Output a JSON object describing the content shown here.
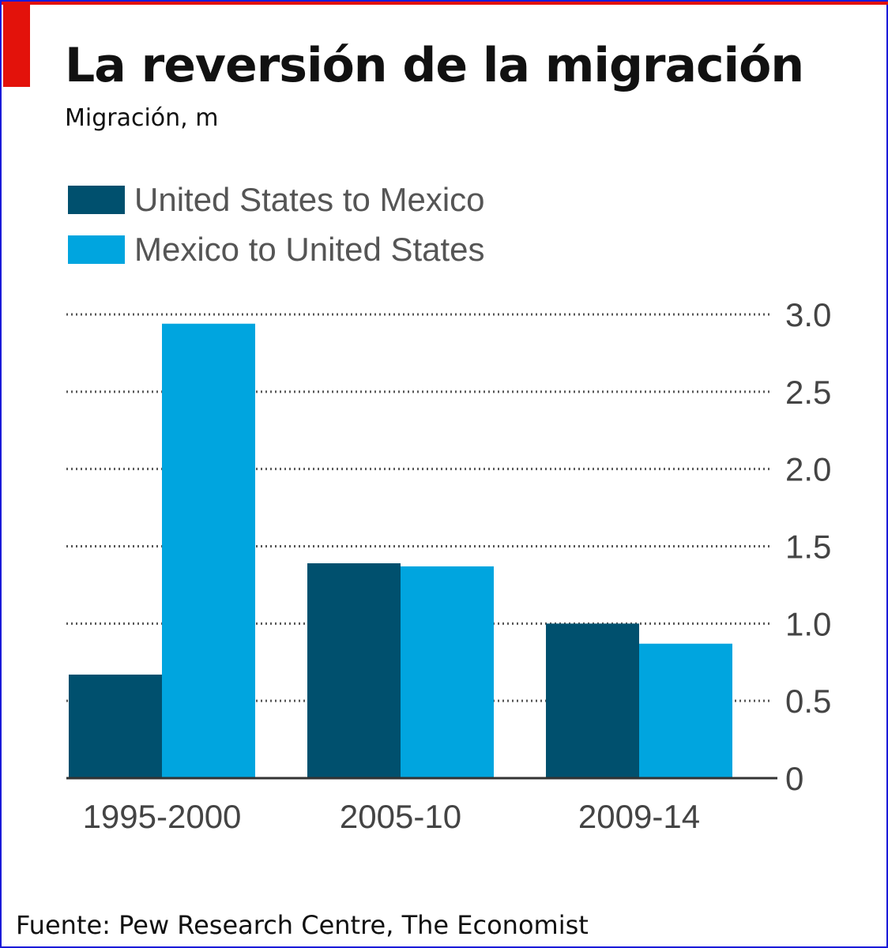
{
  "title": "La reversión de la migración",
  "subtitle": "Migración, m",
  "source": "Fuente: Pew Research Centre, The Economist",
  "colors": {
    "accent_red": "#e3120b",
    "united_states_to_mexico": "#00506e",
    "mexico_to_united_states": "#00a5df"
  },
  "legend": [
    {
      "label": "United States to Mexico"
    },
    {
      "label": "Mexico to United States"
    }
  ],
  "chart_data": {
    "type": "bar",
    "categories": [
      "1995-2000",
      "2005-10",
      "2009-14"
    ],
    "series": [
      {
        "name": "United States to Mexico",
        "values": [
          0.67,
          1.39,
          1.0
        ]
      },
      {
        "name": "Mexico to United States",
        "values": [
          2.94,
          1.37,
          0.87
        ]
      }
    ],
    "ylim": [
      0,
      3.0
    ],
    "yticks": [
      "0",
      "0.5",
      "1.0",
      "1.5",
      "2.0",
      "2.5",
      "3.0"
    ],
    "ytick_values": [
      0,
      0.5,
      1.0,
      1.5,
      2.0,
      2.5,
      3.0
    ],
    "y_axis_side": "right",
    "grid": "dotted horizontal",
    "legend_position": "top-left"
  }
}
